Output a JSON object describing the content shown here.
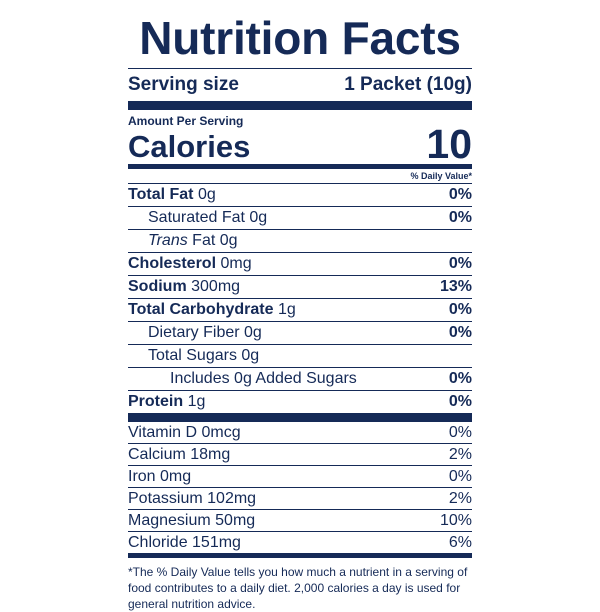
{
  "title": "Nutrition Facts",
  "serving": {
    "label": "Serving size",
    "value": "1 Packet (10g)"
  },
  "amount_per_serving": "Amount Per Serving",
  "calories": {
    "label": "Calories",
    "value": "10"
  },
  "daily_value_header": "% Daily Value*",
  "nutrients": [
    {
      "name": "Total Fat",
      "amount": "0g",
      "dv": "0%"
    },
    {
      "name": "Saturated Fat",
      "amount": "0g",
      "dv": "0%"
    },
    {
      "name_italic": "Trans",
      "name": "Fat",
      "amount": "0g",
      "dv": ""
    },
    {
      "name": "Cholesterol",
      "amount": "0mg",
      "dv": "0%"
    },
    {
      "name": "Sodium",
      "amount": "300mg",
      "dv": "13%"
    },
    {
      "name": "Total Carbohydrate",
      "amount": "1g",
      "dv": "0%"
    },
    {
      "name": "Dietary Fiber",
      "amount": "0g",
      "dv": "0%"
    },
    {
      "name": "Total Sugars",
      "amount": "0g",
      "dv": ""
    },
    {
      "name": "Includes 0g Added Sugars",
      "amount": "",
      "dv": "0%"
    },
    {
      "name": "Protein",
      "amount": "1g",
      "dv": "0%"
    }
  ],
  "micronutrients": [
    {
      "text": "Vitamin D 0mcg",
      "dv": "0%"
    },
    {
      "text": "Calcium 18mg",
      "dv": "2%"
    },
    {
      "text": "Iron 0mg",
      "dv": "0%"
    },
    {
      "text": "Potassium 102mg",
      "dv": "2%"
    },
    {
      "text": "Magnesium 50mg",
      "dv": "10%"
    },
    {
      "text": "Chloride 151mg",
      "dv": "6%"
    }
  ],
  "footnote": "*The % Daily Value tells you how much a nutrient in a serving of food contributes to a daily diet. 2,000 calories a day is used for general nutrition advice.",
  "colors": {
    "ink": "#152a57",
    "background": "#ffffff"
  }
}
